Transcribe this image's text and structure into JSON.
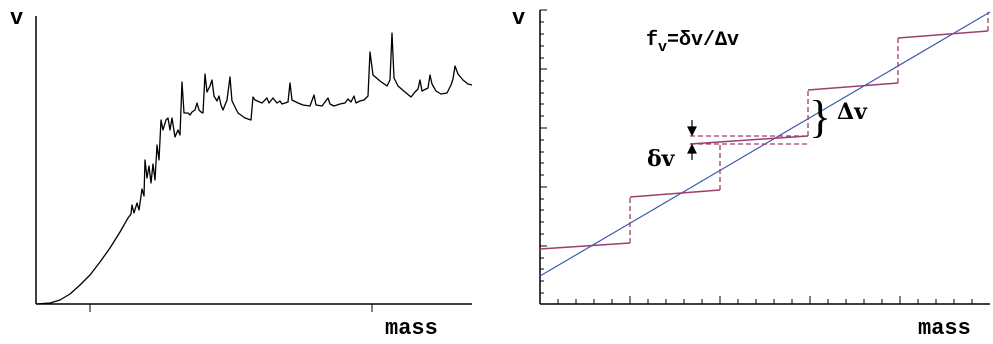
{
  "left_panel": {
    "y_label": "v",
    "x_label": "mass"
  },
  "right_panel": {
    "y_label": "v",
    "x_label": "mass",
    "formula_f": "f",
    "formula_sub": "v",
    "formula_rest": "=δv/Δv",
    "delta_small": "δv",
    "delta_big": "Δv",
    "brace": "}"
  },
  "colors": {
    "curve": "#000000",
    "staircase": "#9b3f6e",
    "diagonal": "#3d5bb0",
    "axis": "#000000"
  }
}
